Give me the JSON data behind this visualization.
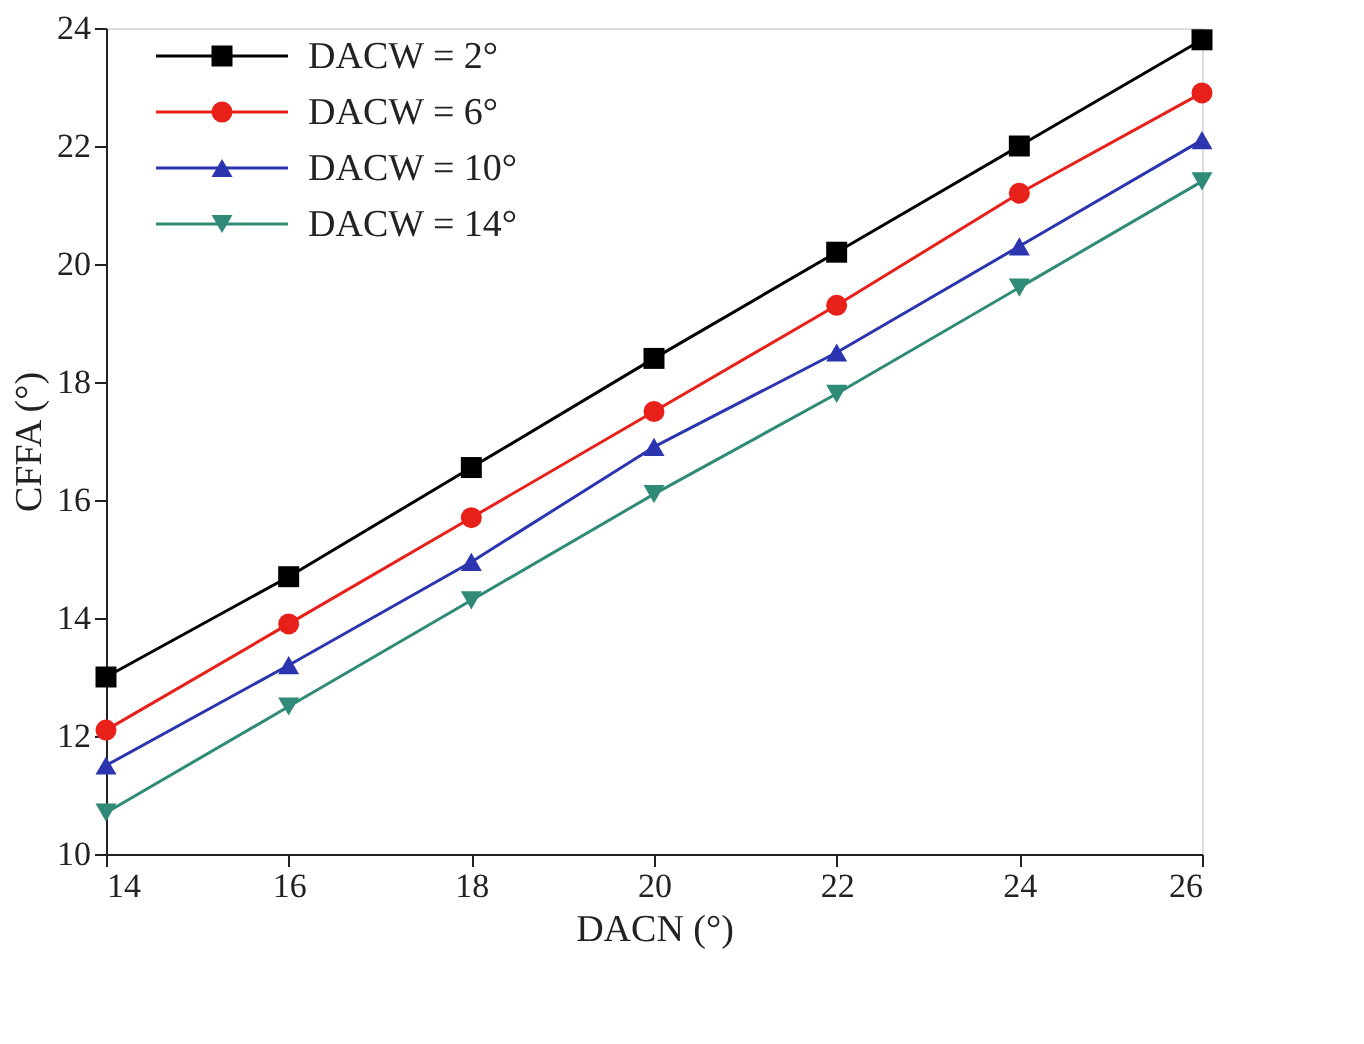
{
  "chart_data": {
    "type": "line",
    "xlabel": "DACN (°)",
    "ylabel": "CFFA (°)",
    "x": [
      14,
      16,
      18,
      20,
      22,
      24,
      26
    ],
    "xlim": [
      14,
      26
    ],
    "xticks": [
      14,
      16,
      18,
      20,
      22,
      24,
      26
    ],
    "ylim": [
      10,
      24
    ],
    "yticks": [
      10,
      12,
      14,
      16,
      18,
      20,
      22,
      24
    ],
    "grid": false,
    "legend": "top left",
    "line_style": "solid",
    "series": [
      {
        "name": "DACW = 2°",
        "color": "#000000",
        "marker": "square",
        "values": [
          13.0,
          14.7,
          16.55,
          18.4,
          20.2,
          22.0,
          23.8
        ]
      },
      {
        "name": "DACW = 6°",
        "color": "#e8201a",
        "marker": "circle",
        "values": [
          12.1,
          13.9,
          15.7,
          17.5,
          19.3,
          21.2,
          22.9
        ]
      },
      {
        "name": "DACW = 10°",
        "color": "#2b35b0",
        "marker": "triangle",
        "values": [
          11.5,
          13.2,
          14.95,
          16.9,
          18.5,
          20.3,
          22.1
        ]
      },
      {
        "name": "DACW = 14°",
        "color": "#2f8a78",
        "marker": "triangle-down",
        "values": [
          10.7,
          12.5,
          14.3,
          16.1,
          17.8,
          19.6,
          21.4
        ]
      }
    ]
  }
}
